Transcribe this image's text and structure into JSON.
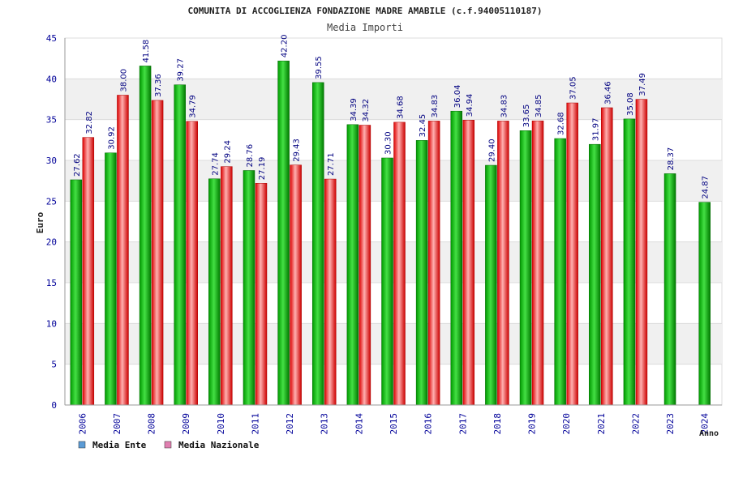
{
  "chart_data": {
    "type": "bar",
    "title": "COMUNITA DI ACCOGLIENZA FONDAZIONE MADRE AMABILE (c.f.94005110187)",
    "subtitle": "Media Importi",
    "xlabel": "Anno",
    "ylabel": "Euro",
    "ylim": [
      0,
      45
    ],
    "yticks": [
      0,
      5,
      10,
      15,
      20,
      25,
      30,
      35,
      40,
      45
    ],
    "grid": true,
    "legend_position": "bottom-left",
    "categories": [
      "2006",
      "2007",
      "2008",
      "2009",
      "2010",
      "2011",
      "2012",
      "2013",
      "2014",
      "2015",
      "2016",
      "2017",
      "2018",
      "2019",
      "2020",
      "2021",
      "2022",
      "2023",
      "2024"
    ],
    "series": [
      {
        "name": "Media Ente",
        "values": [
          27.62,
          30.92,
          41.58,
          39.27,
          27.74,
          28.76,
          42.2,
          39.55,
          34.39,
          30.3,
          32.45,
          36.04,
          29.4,
          33.65,
          32.68,
          31.97,
          35.08,
          28.37,
          24.87
        ],
        "labels": [
          "27.62",
          "30.92",
          "41.58",
          "39.27",
          "27.74",
          "28.76",
          "42.20",
          "39.55",
          "34.39",
          "30.30",
          "32.45",
          "36.04",
          "29.40",
          "33.65",
          "32.68",
          "31.97",
          "35.08",
          "28.37",
          "24.87"
        ]
      },
      {
        "name": "Media Nazionale",
        "values": [
          32.82,
          38.0,
          37.36,
          34.79,
          29.24,
          27.19,
          29.43,
          27.71,
          34.32,
          34.68,
          34.83,
          34.94,
          34.83,
          34.85,
          37.05,
          36.46,
          37.49,
          null,
          null
        ],
        "labels": [
          "32.82",
          "38.00",
          "37.36",
          "34.79",
          "29.24",
          "27.19",
          "29.43",
          "27.71",
          "34.32",
          "34.68",
          "34.83",
          "34.94",
          "34.83",
          "34.85",
          "37.05",
          "36.46",
          "37.49",
          "",
          ""
        ]
      }
    ]
  },
  "legend": {
    "items": [
      {
        "label": "Media Ente",
        "color": "#5b9bd5"
      },
      {
        "label": "Media Nazionale",
        "color": "#e07fb0"
      }
    ]
  },
  "colors": {
    "ente_dark": "#007a00",
    "ente_light": "#33dd33",
    "naz_dark": "#cc0000",
    "naz_light": "#ffaaaa",
    "tick_text": "#000099",
    "label_text": "#000080",
    "grid_band": "#f0f0f0"
  }
}
